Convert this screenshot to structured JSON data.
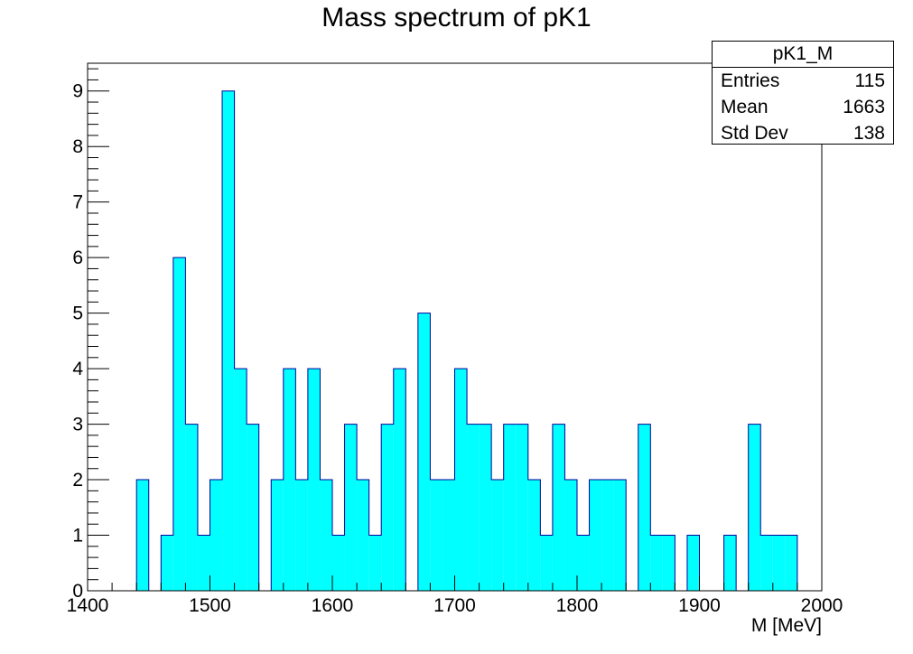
{
  "chart_data": {
    "type": "bar",
    "title": "Mass spectrum of pK1",
    "xlabel": "M [MeV]",
    "ylabel": "",
    "xlim": [
      1400,
      2000
    ],
    "ylim": [
      0,
      9.5
    ],
    "bin_width": 10,
    "x_ticks": [
      "1400",
      "1500",
      "1600",
      "1700",
      "1800",
      "1900",
      "2000"
    ],
    "y_ticks": [
      "0",
      "1",
      "2",
      "3",
      "4",
      "5",
      "6",
      "7",
      "8",
      "9"
    ],
    "bins": [
      {
        "x": 1440,
        "y": 2
      },
      {
        "x": 1460,
        "y": 1
      },
      {
        "x": 1470,
        "y": 6
      },
      {
        "x": 1480,
        "y": 3
      },
      {
        "x": 1490,
        "y": 1
      },
      {
        "x": 1500,
        "y": 2
      },
      {
        "x": 1510,
        "y": 9
      },
      {
        "x": 1520,
        "y": 4
      },
      {
        "x": 1530,
        "y": 3
      },
      {
        "x": 1550,
        "y": 2
      },
      {
        "x": 1560,
        "y": 4
      },
      {
        "x": 1570,
        "y": 2
      },
      {
        "x": 1580,
        "y": 4
      },
      {
        "x": 1590,
        "y": 2
      },
      {
        "x": 1600,
        "y": 1
      },
      {
        "x": 1610,
        "y": 3
      },
      {
        "x": 1620,
        "y": 2
      },
      {
        "x": 1630,
        "y": 1
      },
      {
        "x": 1640,
        "y": 3
      },
      {
        "x": 1650,
        "y": 4
      },
      {
        "x": 1670,
        "y": 5
      },
      {
        "x": 1680,
        "y": 2
      },
      {
        "x": 1690,
        "y": 2
      },
      {
        "x": 1700,
        "y": 4
      },
      {
        "x": 1710,
        "y": 3
      },
      {
        "x": 1720,
        "y": 3
      },
      {
        "x": 1730,
        "y": 2
      },
      {
        "x": 1740,
        "y": 3
      },
      {
        "x": 1750,
        "y": 3
      },
      {
        "x": 1760,
        "y": 2
      },
      {
        "x": 1770,
        "y": 1
      },
      {
        "x": 1780,
        "y": 3
      },
      {
        "x": 1790,
        "y": 2
      },
      {
        "x": 1800,
        "y": 1
      },
      {
        "x": 1810,
        "y": 2
      },
      {
        "x": 1820,
        "y": 2
      },
      {
        "x": 1830,
        "y": 2
      },
      {
        "x": 1850,
        "y": 3
      },
      {
        "x": 1860,
        "y": 1
      },
      {
        "x": 1870,
        "y": 1
      },
      {
        "x": 1890,
        "y": 1
      },
      {
        "x": 1920,
        "y": 1
      },
      {
        "x": 1940,
        "y": 3
      },
      {
        "x": 1950,
        "y": 1
      },
      {
        "x": 1960,
        "y": 1
      },
      {
        "x": 1970,
        "y": 1
      }
    ],
    "fill_color": "#00ffff",
    "line_color": "#000099",
    "grid": false,
    "legend": "none",
    "stats_box": {
      "placement": "top-right",
      "name": "pK1_M",
      "rows": [
        {
          "label": "Entries",
          "value": "115"
        },
        {
          "label": "Mean",
          "value": "1663"
        },
        {
          "label": "Std Dev",
          "value": "138"
        }
      ]
    }
  }
}
